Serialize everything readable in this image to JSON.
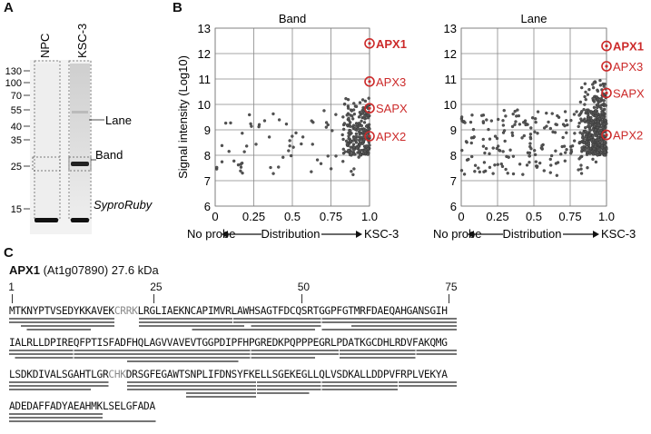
{
  "panels": {
    "a": "A",
    "b": "B",
    "c": "C"
  },
  "gel": {
    "lanes": [
      "NPC",
      "KSC-3"
    ],
    "markers": [
      "130",
      "100",
      "70",
      "55",
      "40",
      "35",
      "25",
      "15"
    ],
    "labels": {
      "lane": "Lane",
      "band": "Band",
      "stain": "SyproRuby"
    }
  },
  "chart_data": [
    {
      "type": "scatter",
      "title": "Band",
      "ylabel": "Signal intensity (Log10)",
      "xlabel": "Distribution",
      "x_left_note": "No probe",
      "x_right_note": "KSC-3",
      "xlim": [
        0,
        1.0
      ],
      "ylim": [
        6,
        13
      ],
      "xticks": [
        "0",
        "0.25",
        "0.5",
        "0.75",
        "1.0"
      ],
      "yticks": [
        "6",
        "7",
        "8",
        "9",
        "10",
        "11",
        "12",
        "13"
      ],
      "grid": true,
      "highlights": [
        {
          "name": "APX1",
          "x": 1.0,
          "y": 12.4,
          "bold": true
        },
        {
          "name": "APX3",
          "x": 1.0,
          "y": 10.9,
          "bold": false
        },
        {
          "name": "SAPX",
          "x": 1.0,
          "y": 9.85,
          "bold": false
        },
        {
          "name": "APX2",
          "x": 1.0,
          "y": 8.75,
          "bold": false
        }
      ]
    },
    {
      "type": "scatter",
      "title": "Lane",
      "ylabel": "",
      "xlabel": "Distribution",
      "x_left_note": "No probe",
      "x_right_note": "KSC-3",
      "xlim": [
        0,
        1.0
      ],
      "ylim": [
        6,
        13
      ],
      "xticks": [
        "0",
        "0.25",
        "0.5",
        "0.75",
        "1.0"
      ],
      "yticks": [
        "6",
        "7",
        "8",
        "9",
        "10",
        "11",
        "12",
        "13"
      ],
      "grid": true,
      "highlights": [
        {
          "name": "APX1",
          "x": 1.0,
          "y": 12.3,
          "bold": true
        },
        {
          "name": "APX3",
          "x": 1.0,
          "y": 11.5,
          "bold": false
        },
        {
          "name": "SAPX",
          "x": 1.0,
          "y": 10.45,
          "bold": false
        },
        {
          "name": "APX2",
          "x": 1.0,
          "y": 8.8,
          "bold": false
        }
      ]
    }
  ],
  "sequence": {
    "protein": "APX1",
    "locus": "(At1g07890) 27.6 kDa",
    "positions": [
      "1",
      "25",
      "50",
      "75"
    ],
    "lines": [
      [
        {
          "t": "MTKNYPTVSEDYKKAVEK",
          "g": false
        },
        {
          "t": "CRRK",
          "g": true
        },
        {
          "t": "LRGLIAEKNCAPIMVRLAWHSAGTFDCQSRTGGPFGTMRFDAEQAHGANSGIH",
          "g": false
        }
      ],
      [
        {
          "t": "IALRLLDPIREQFPTISFADFHQLAGVVAVEVTGGPDIPFHPGREDKPQPPPEGRLPDATKGCDHLRDVFAKQMG",
          "g": false
        }
      ],
      [
        {
          "t": "LSDKDIVALSGAHTLGR",
          "g": false
        },
        {
          "t": "CHK",
          "g": true
        },
        {
          "t": "DRSGFEGAWTSNPLIFDNSYFKELLSGEKEGLLQLVSDKALLDDPVFRPLVEKYA",
          "g": false
        }
      ],
      [
        {
          "t": "ADEDAFFADYAEAHMKLSELGFADA",
          "g": false
        }
      ]
    ]
  }
}
